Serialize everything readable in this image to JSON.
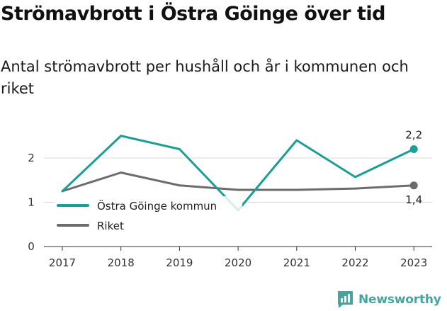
{
  "header": {
    "title": "Strömavbrott i Östra Göinge över tid",
    "subtitle": "Antal strömavbrott per hushåll och år i kommunen och riket"
  },
  "chart_data": {
    "type": "line",
    "title": "Strömavbrott i Östra Göinge över tid",
    "subtitle": "Antal strömavbrott per hushåll och år i kommunen och riket",
    "x": [
      "2017",
      "2018",
      "2019",
      "2020",
      "2021",
      "2022",
      "2023"
    ],
    "ylim": [
      0,
      2.5
    ],
    "yticks": [
      "0",
      "1",
      "2"
    ],
    "grid": true,
    "legend": "bottom-left",
    "series": [
      {
        "name": "Östra Göinge kommun",
        "color": "#1b9e94",
        "values": [
          1.25,
          2.5,
          2.2,
          0.82,
          2.4,
          1.57,
          2.2
        ]
      },
      {
        "name": "Riket",
        "color": "#6b6b70",
        "values": [
          1.25,
          1.67,
          1.38,
          1.28,
          1.28,
          1.31,
          1.38
        ]
      }
    ],
    "end_labels": [
      "2,2",
      "1,4"
    ]
  },
  "footer": {
    "brand": "Newsworthy"
  },
  "colors": {
    "brand": "#45a49e",
    "grid": "#d9d9d9",
    "axis": "#333333"
  }
}
